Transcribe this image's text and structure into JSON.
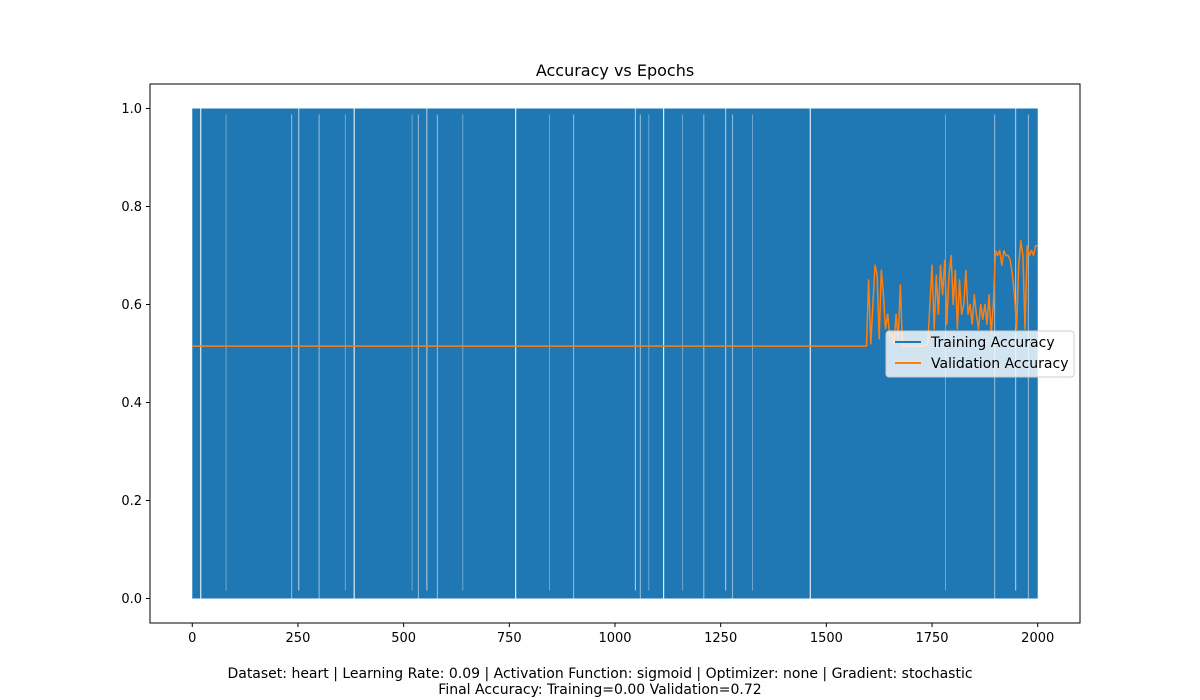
{
  "chart_data": {
    "type": "line",
    "title": "Accuracy vs Epochs",
    "xlabel": "",
    "ylabel": "",
    "xlim": [
      -100,
      2100
    ],
    "ylim": [
      -0.05,
      1.05
    ],
    "x_ticks": [
      0,
      250,
      500,
      750,
      1000,
      1250,
      1500,
      1750,
      2000
    ],
    "y_ticks": [
      0.0,
      0.2,
      0.4,
      0.6,
      0.8,
      1.0
    ],
    "x_tick_labels": [
      "0",
      "250",
      "500",
      "750",
      "1000",
      "1250",
      "1500",
      "1750",
      "2000"
    ],
    "y_tick_labels": [
      "0.0",
      "0.2",
      "0.4",
      "0.6",
      "0.8",
      "1.0"
    ],
    "grid": false,
    "legend_position": "center-right",
    "series": [
      {
        "name": "Training Accuracy",
        "color": "#1f77b4",
        "values_description": "oscillates between 0.0 and 1.0 every epoch across 0-2000",
        "x_range": [
          0,
          2000
        ],
        "min": 0.0,
        "max": 1.0
      },
      {
        "name": "Validation Accuracy",
        "color": "#ff7f0e",
        "x": [
          0,
          1595,
          1600,
          1605,
          1610,
          1615,
          1620,
          1625,
          1630,
          1635,
          1640,
          1645,
          1650,
          1655,
          1660,
          1665,
          1670,
          1675,
          1680,
          1690,
          1700,
          1710,
          1720,
          1730,
          1740,
          1750,
          1755,
          1760,
          1765,
          1770,
          1775,
          1780,
          1785,
          1790,
          1795,
          1800,
          1805,
          1810,
          1815,
          1820,
          1825,
          1830,
          1835,
          1840,
          1845,
          1850,
          1855,
          1860,
          1865,
          1870,
          1875,
          1880,
          1885,
          1890,
          1895,
          1900,
          1905,
          1910,
          1915,
          1920,
          1925,
          1930,
          1935,
          1940,
          1945,
          1950,
          1955,
          1960,
          1965,
          1970,
          1975,
          1980,
          1985,
          1990,
          1995,
          2000
        ],
        "values": [
          0.515,
          0.515,
          0.65,
          0.52,
          0.6,
          0.68,
          0.66,
          0.53,
          0.67,
          0.62,
          0.55,
          0.58,
          0.535,
          0.54,
          0.52,
          0.58,
          0.53,
          0.64,
          0.515,
          0.515,
          0.515,
          0.515,
          0.515,
          0.515,
          0.52,
          0.68,
          0.55,
          0.66,
          0.58,
          0.68,
          0.62,
          0.69,
          0.56,
          0.66,
          0.7,
          0.6,
          0.67,
          0.55,
          0.65,
          0.58,
          0.6,
          0.67,
          0.58,
          0.6,
          0.56,
          0.62,
          0.58,
          0.55,
          0.6,
          0.57,
          0.6,
          0.56,
          0.62,
          0.54,
          0.6,
          0.71,
          0.7,
          0.71,
          0.68,
          0.71,
          0.7,
          0.7,
          0.69,
          0.66,
          0.62,
          0.55,
          0.68,
          0.73,
          0.7,
          0.55,
          0.72,
          0.7,
          0.71,
          0.7,
          0.72,
          0.72
        ]
      }
    ]
  },
  "caption": {
    "line1": "Dataset: heart | Learning Rate: 0.09 | Activation Function: sigmoid | Optimizer: none | Gradient: stochastic",
    "line2": "Final Accuracy: Training=0.00 Validation=0.72"
  }
}
